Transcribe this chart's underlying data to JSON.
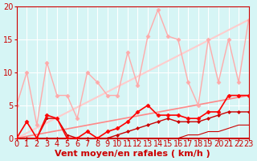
{
  "background_color": "#d6f5f5",
  "grid_color": "#ffffff",
  "xlabel": "Vent moyen/en rafales ( km/h )",
  "xlabel_color": "#cc0000",
  "xlabel_fontsize": 8,
  "xtick_color": "#cc0000",
  "ytick_color": "#cc0000",
  "tick_fontsize": 7,
  "xlim": [
    0,
    23
  ],
  "ylim": [
    0,
    20
  ],
  "yticks": [
    0,
    5,
    10,
    15,
    20
  ],
  "xticks": [
    0,
    1,
    2,
    3,
    4,
    5,
    6,
    7,
    8,
    9,
    10,
    11,
    12,
    13,
    14,
    15,
    16,
    17,
    18,
    19,
    20,
    21,
    22,
    23
  ],
  "lines": [
    {
      "x": [
        0,
        1,
        2,
        3,
        4,
        5,
        6,
        7,
        8,
        9,
        10,
        11,
        12,
        13,
        14,
        15,
        16,
        17,
        18,
        19,
        20,
        21,
        22,
        23
      ],
      "y": [
        5,
        10,
        2,
        11.5,
        6.5,
        6.5,
        3,
        10,
        8.5,
        6.5,
        6.5,
        13,
        8,
        15.5,
        19.5,
        15.5,
        15,
        8.5,
        5,
        15,
        8.5,
        15,
        8.5,
        18
      ],
      "color": "#ffaaaa",
      "linewidth": 1.0,
      "marker": "D",
      "markersize": 2.5,
      "zorder": 2
    },
    {
      "x": [
        0,
        1,
        2,
        3,
        4,
        5,
        6,
        7,
        8,
        9,
        10,
        11,
        12,
        13,
        14,
        15,
        16,
        17,
        18,
        19,
        20,
        21,
        22,
        23
      ],
      "y": [
        0,
        0,
        0,
        3,
        3,
        0.5,
        0,
        0,
        0,
        0,
        0,
        0,
        0,
        0,
        0,
        0,
        0,
        0,
        0,
        0,
        0,
        0,
        0,
        0
      ],
      "color": "#cc0000",
      "linewidth": 1.0,
      "marker": "s",
      "markersize": 2.0,
      "zorder": 3
    },
    {
      "x": [
        0,
        1,
        2,
        3,
        4,
        5,
        6,
        7,
        8,
        9,
        10,
        11,
        12,
        13,
        14,
        15,
        16,
        17,
        18,
        19,
        20,
        21,
        22,
        23
      ],
      "y": [
        0,
        2.5,
        0,
        3.5,
        3,
        0,
        0,
        1,
        0,
        1,
        1.5,
        2.5,
        4,
        5,
        3.5,
        3.5,
        3.5,
        3,
        3,
        4,
        4,
        6.5,
        6.5,
        6.5
      ],
      "color": "#ff0000",
      "linewidth": 1.2,
      "marker": "D",
      "markersize": 2.5,
      "zorder": 4
    },
    {
      "x": [
        0,
        1,
        2,
        3,
        4,
        5,
        6,
        7,
        8,
        9,
        10,
        11,
        12,
        13,
        14,
        15,
        16,
        17,
        18,
        19,
        20,
        21,
        22,
        23
      ],
      "y": [
        0,
        0,
        0,
        0,
        0,
        0,
        0,
        0,
        0,
        0,
        0.5,
        1,
        1.5,
        2,
        2.5,
        3,
        2.5,
        2.5,
        2.5,
        3,
        3.5,
        4,
        4,
        4
      ],
      "color": "#cc0000",
      "linewidth": 1.0,
      "marker": "D",
      "markersize": 2.0,
      "zorder": 3
    },
    {
      "x": [
        0,
        1,
        2,
        3,
        4,
        5,
        6,
        7,
        8,
        9,
        10,
        11,
        12,
        13,
        14,
        15,
        16,
        17,
        18,
        19,
        20,
        21,
        22,
        23
      ],
      "y": [
        0,
        0,
        0,
        0,
        0,
        0,
        0,
        0,
        0,
        0,
        0,
        0,
        0,
        0,
        0,
        0,
        0,
        0.5,
        0.5,
        1,
        1,
        1.5,
        2,
        2
      ],
      "color": "#cc0000",
      "linewidth": 0.8,
      "marker": "",
      "markersize": 0,
      "zorder": 2
    },
    {
      "x": [
        0,
        23
      ],
      "y": [
        0,
        18
      ],
      "color": "#ffcccc",
      "linewidth": 1.5,
      "marker": "",
      "markersize": 0,
      "zorder": 1
    },
    {
      "x": [
        0,
        23
      ],
      "y": [
        0,
        6.5
      ],
      "color": "#ff8888",
      "linewidth": 1.2,
      "marker": "",
      "markersize": 0,
      "zorder": 1
    }
  ]
}
